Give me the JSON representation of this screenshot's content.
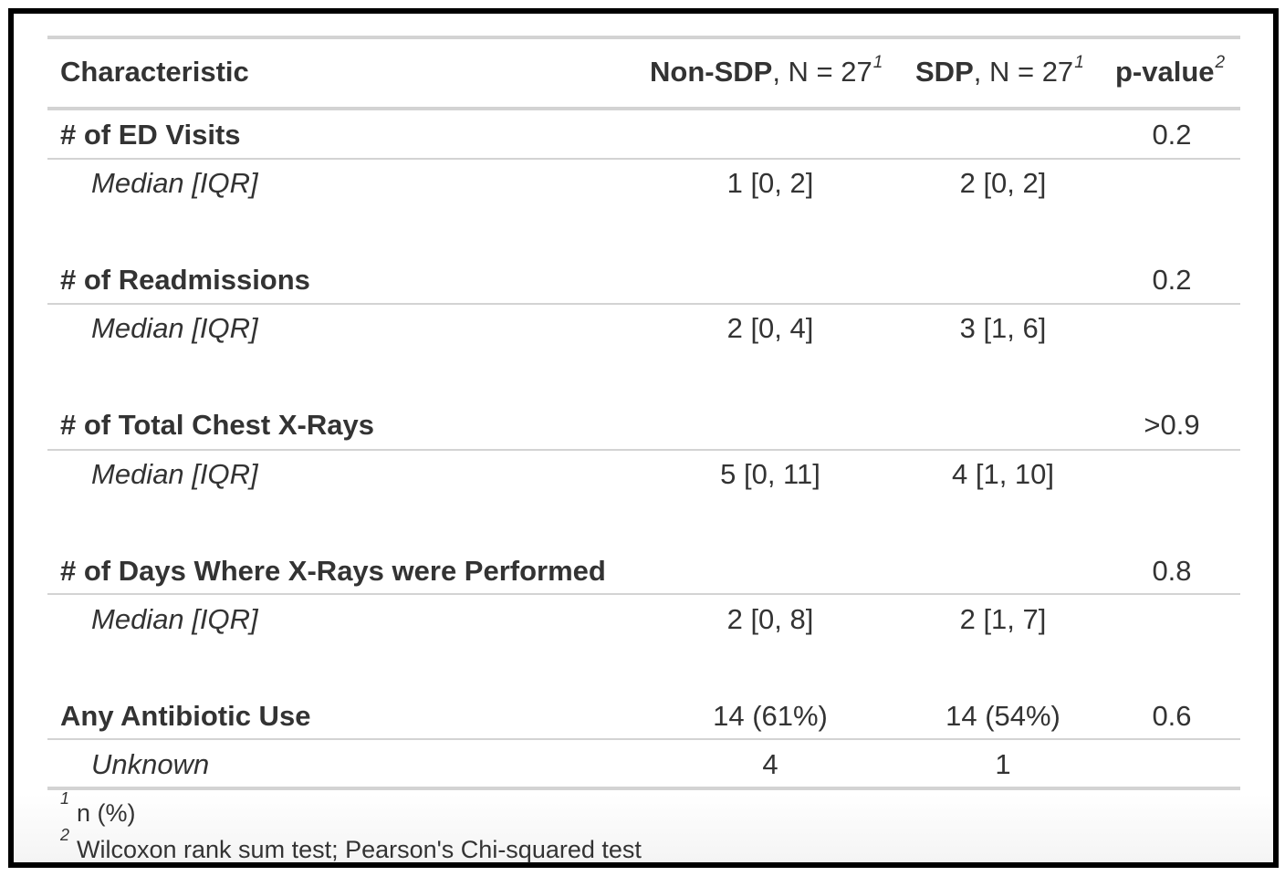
{
  "header": {
    "characteristic": "Characteristic",
    "col1_bold": "Non-SDP",
    "col1_rest": ", N = 27",
    "col1_sup": "1",
    "col2_bold": "SDP",
    "col2_rest": ", N = 27",
    "col2_sup": "1",
    "pvalue": "p-value",
    "pvalue_sup": "2"
  },
  "rows": [
    {
      "label": "# of ED Visits",
      "col1": "",
      "col2": "",
      "p": "0.2"
    },
    {
      "label": "Median [IQR]",
      "col1": "1 [0, 2]",
      "col2": "2 [0, 2]",
      "p": ""
    },
    {
      "label": "# of Readmissions",
      "col1": "",
      "col2": "",
      "p": "0.2"
    },
    {
      "label": "Median [IQR]",
      "col1": "2 [0, 4]",
      "col2": "3 [1, 6]",
      "p": ""
    },
    {
      "label": "# of Total Chest X-Rays",
      "col1": "",
      "col2": "",
      "p": ">0.9"
    },
    {
      "label": "Median [IQR]",
      "col1": "5 [0, 11]",
      "col2": "4 [1, 10]",
      "p": ""
    },
    {
      "label": "# of Days Where X-Rays were Performed",
      "col1": "",
      "col2": "",
      "p": "0.8"
    },
    {
      "label": "Median [IQR]",
      "col1": "2 [0, 8]",
      "col2": "2 [1, 7]",
      "p": ""
    },
    {
      "label": "Any Antibiotic Use",
      "col1": "14 (61%)",
      "col2": "14 (54%)",
      "p": "0.6"
    },
    {
      "label": "Unknown",
      "col1": "4",
      "col2": "1",
      "p": ""
    }
  ],
  "footnotes": [
    {
      "mark": "1",
      "text": "n (%)"
    },
    {
      "mark": "2",
      "text": "Wilcoxon rank sum test; Pearson's Chi-squared test"
    }
  ]
}
